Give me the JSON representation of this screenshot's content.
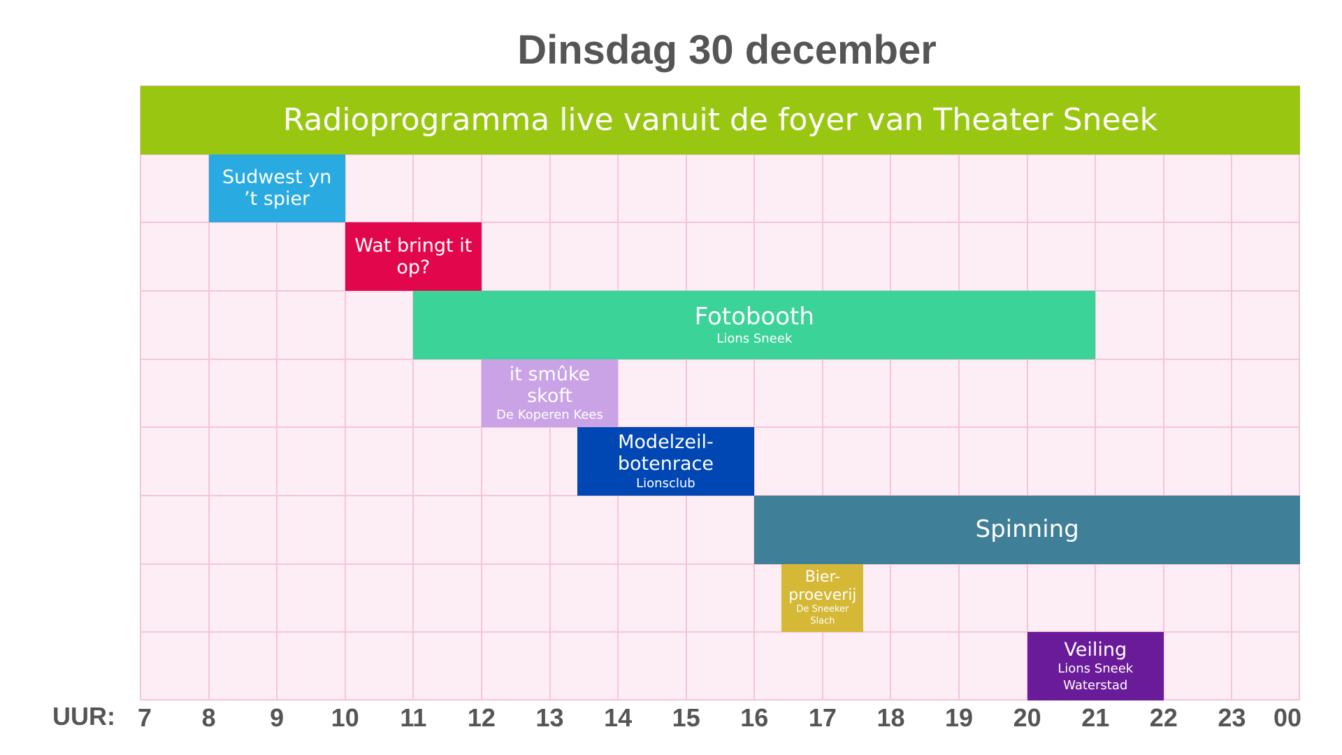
{
  "title": "Dinsdag 30 december",
  "axis_label": "UUR:",
  "hour_ticks": [
    "7",
    "8",
    "9",
    "10",
    "11",
    "12",
    "13",
    "14",
    "15",
    "16",
    "17",
    "18",
    "19",
    "20",
    "21",
    "22",
    "23",
    "00"
  ],
  "hour_range": [
    7,
    24
  ],
  "row_count": 9,
  "events": [
    {
      "title": "Radioprogramma live vanuit de foyer van Theater Sneek",
      "subtitle": "",
      "start": 7,
      "end": 24,
      "row": 0,
      "color": "#99c711"
    },
    {
      "title": "Sudwest yn ’t spier",
      "subtitle": "",
      "start": 8,
      "end": 10,
      "row": 1,
      "color": "#29abe2"
    },
    {
      "title": "Wat bringt it op?",
      "subtitle": "",
      "start": 10,
      "end": 12,
      "row": 2,
      "color": "#e2074c"
    },
    {
      "title": "Fotobooth",
      "subtitle": "Lions Sneek",
      "start": 11,
      "end": 21,
      "row": 3,
      "color": "#3cd399"
    },
    {
      "title": "it smûke skoft",
      "subtitle": "De Koperen Kees",
      "start": 12,
      "end": 14,
      "row": 4,
      "color": "#c9a3e6"
    },
    {
      "title": "Modelzeil-botenrace",
      "subtitle": "Lionsclub",
      "start": 13.4,
      "end": 16,
      "row": 5,
      "color": "#0047b3"
    },
    {
      "title": "Spinning",
      "subtitle": "",
      "start": 16,
      "end": 24,
      "row": 6,
      "color": "#407f98"
    },
    {
      "title": "Bier-proeverij",
      "subtitle": "De Sneeker Slach",
      "start": 16.4,
      "end": 17.6,
      "row": 7,
      "color": "#d4b836"
    },
    {
      "title": "Veiling",
      "subtitle": "Lions Sneek Waterstad",
      "start": 20,
      "end": 22,
      "row": 8,
      "color": "#6a1b9a"
    }
  ]
}
